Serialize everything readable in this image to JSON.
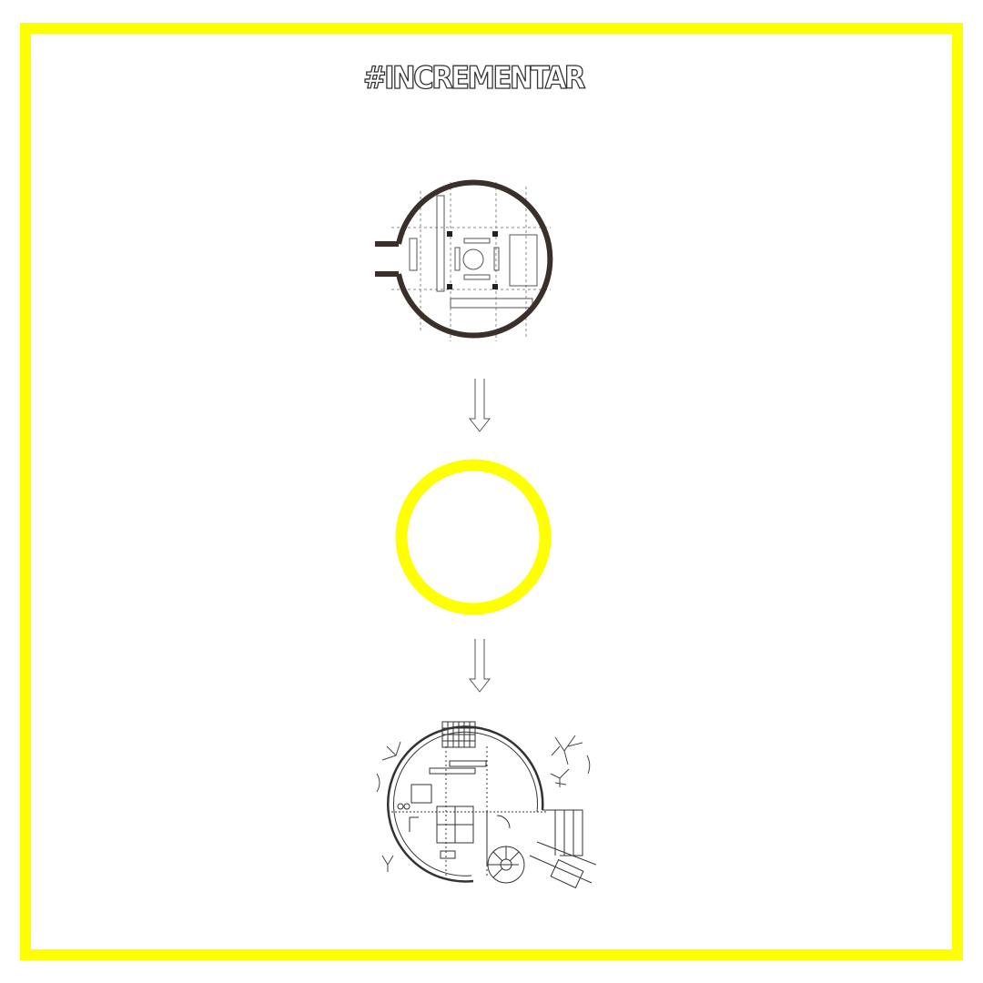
{
  "title": "#INCREMENTAR",
  "colors": {
    "accent": "#ffff00",
    "line": "#333333",
    "wall": "#3a2f2a",
    "background": "#ffffff"
  },
  "figures": [
    "original-plan-drawing",
    "circle-abstraction",
    "final-plan-drawing"
  ],
  "icons": [
    "double-arrow-down-icon",
    "double-arrow-down-icon"
  ]
}
